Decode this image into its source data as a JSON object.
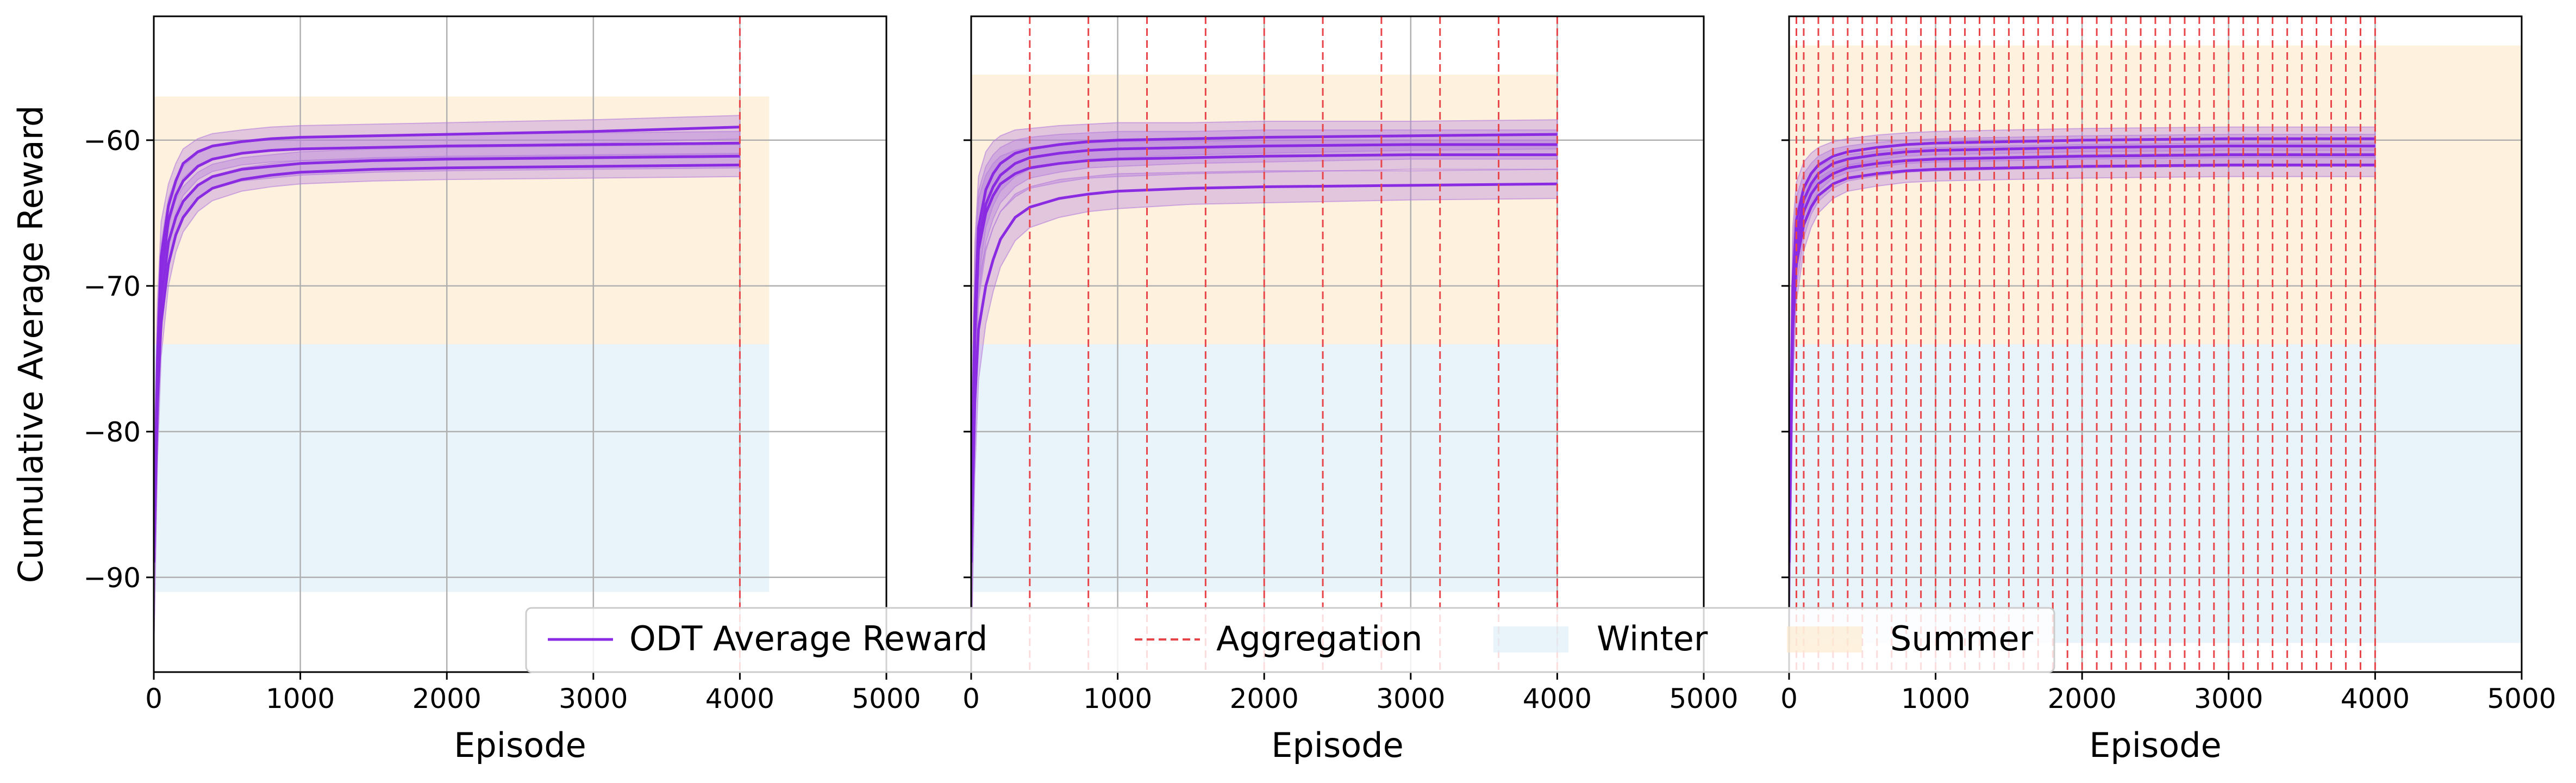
{
  "colors": {
    "odt": "#8a2be2",
    "band": "#b57edc",
    "aggregation": "#e8454a",
    "winter": "#d9ecf5",
    "summer": "#fde9c8",
    "grid": "#b0b0b0"
  },
  "legend": {
    "odt_label": "ODT Average Reward",
    "aggregation_label": "Aggregation",
    "winter_label": "Winter",
    "summer_label": "Summer"
  },
  "chart_data": [
    {
      "type": "line",
      "xlabel": "Episode",
      "ylabel": "Cumulative Average Reward",
      "xlim": [
        0,
        5000
      ],
      "ylim": [
        -96.5,
        -51.5
      ],
      "xticks": [
        0,
        1000,
        2000,
        3000,
        4000,
        5000
      ],
      "yticks": [
        -60,
        -70,
        -80,
        -90
      ],
      "grid": true,
      "winter_region": {
        "x": [
          0,
          4200
        ],
        "y": [
          -91,
          -74
        ]
      },
      "summer_region": {
        "x": [
          0,
          4200
        ],
        "y": [
          -74,
          -57
        ]
      },
      "aggregation_x": [
        4000
      ],
      "series": [
        {
          "x": [
            0,
            25,
            50,
            100,
            150,
            200,
            300,
            400,
            600,
            800,
            1000,
            1500,
            2000,
            3000,
            4000
          ],
          "values": [
            -89,
            -75,
            -68,
            -64.5,
            -62.8,
            -61.6,
            -60.8,
            -60.4,
            -60.1,
            -59.9,
            -59.8,
            -59.7,
            -59.6,
            -59.4,
            -59.1
          ]
        },
        {
          "x": [
            0,
            25,
            50,
            100,
            150,
            200,
            300,
            400,
            600,
            800,
            1000,
            1500,
            2000,
            3000,
            4000
          ],
          "values": [
            -89,
            -76,
            -69.5,
            -65.5,
            -63.8,
            -62.8,
            -61.8,
            -61.3,
            -60.9,
            -60.7,
            -60.6,
            -60.5,
            -60.4,
            -60.3,
            -60.2
          ]
        },
        {
          "x": [
            0,
            25,
            50,
            100,
            150,
            200,
            300,
            400,
            600,
            800,
            1000,
            1500,
            2000,
            3000,
            4000
          ],
          "values": [
            -89,
            -77,
            -71,
            -67,
            -65.3,
            -64.2,
            -63.1,
            -62.5,
            -62.0,
            -61.8,
            -61.6,
            -61.4,
            -61.3,
            -61.2,
            -61.1
          ]
        },
        {
          "x": [
            0,
            25,
            50,
            100,
            150,
            200,
            300,
            400,
            600,
            800,
            1000,
            1500,
            2000,
            3000,
            4000
          ],
          "values": [
            -89,
            -78,
            -72.5,
            -68.5,
            -66.5,
            -65.3,
            -64.0,
            -63.3,
            -62.7,
            -62.4,
            -62.2,
            -62.0,
            -61.9,
            -61.8,
            -61.7
          ]
        }
      ],
      "band_halfwidth": [
        6,
        4,
        2.4,
        1.5,
        1.2,
        1.0,
        0.9,
        0.85,
        0.8,
        0.8,
        0.8,
        0.8,
        0.8,
        0.8,
        0.8
      ]
    },
    {
      "type": "line",
      "xlabel": "Episode",
      "ylabel": "",
      "xlim": [
        0,
        5000
      ],
      "ylim": [
        -96.5,
        -51.5
      ],
      "xticks": [
        0,
        1000,
        2000,
        3000,
        4000,
        5000
      ],
      "yticks": [
        -60,
        -70,
        -80,
        -90
      ],
      "grid": true,
      "winter_region": {
        "x": [
          0,
          4000
        ],
        "y": [
          -91,
          -74
        ]
      },
      "summer_region": {
        "x": [
          0,
          4000
        ],
        "y": [
          -74,
          -55.5
        ]
      },
      "aggregation_x": [
        400,
        800,
        1200,
        1600,
        2000,
        2400,
        2800,
        3200,
        3600,
        4000
      ],
      "series": [
        {
          "x": [
            0,
            25,
            50,
            100,
            150,
            200,
            300,
            400,
            600,
            800,
            1000,
            1500,
            2000,
            3000,
            4000
          ],
          "values": [
            -89,
            -72,
            -66,
            -63.4,
            -62.3,
            -61.6,
            -60.9,
            -60.6,
            -60.3,
            -60.1,
            -60.0,
            -59.9,
            -59.8,
            -59.7,
            -59.6
          ]
        },
        {
          "x": [
            0,
            25,
            50,
            100,
            150,
            200,
            300,
            400,
            600,
            800,
            1000,
            1500,
            2000,
            3000,
            4000
          ],
          "values": [
            -89,
            -73,
            -67,
            -64.4,
            -63.2,
            -62.4,
            -61.6,
            -61.2,
            -60.9,
            -60.7,
            -60.6,
            -60.5,
            -60.4,
            -60.3,
            -60.3
          ]
        },
        {
          "x": [
            0,
            25,
            50,
            100,
            150,
            200,
            300,
            400,
            600,
            800,
            1000,
            1500,
            2000,
            3000,
            4000
          ],
          "values": [
            -89,
            -73.5,
            -67.5,
            -65,
            -63.8,
            -63.0,
            -62.3,
            -61.9,
            -61.6,
            -61.4,
            -61.3,
            -61.2,
            -61.1,
            -61.0,
            -61.0
          ]
        },
        {
          "x": [
            0,
            25,
            50,
            100,
            150,
            200,
            300,
            400,
            600,
            800,
            1000,
            1500,
            2000,
            3000,
            4000
          ],
          "values": [
            -89,
            -78,
            -73,
            -70,
            -68.2,
            -66.8,
            -65.3,
            -64.6,
            -64.0,
            -63.7,
            -63.5,
            -63.3,
            -63.2,
            -63.1,
            -63.0
          ]
        }
      ],
      "band_halfwidth": [
        7,
        5,
        3.5,
        2.6,
        2.2,
        1.9,
        1.6,
        1.4,
        1.3,
        1.2,
        1.2,
        1.1,
        1.1,
        1.0,
        1.0
      ]
    },
    {
      "type": "line",
      "xlabel": "Episode",
      "ylabel": "",
      "xlim": [
        0,
        5000
      ],
      "ylim": [
        -96.5,
        -51.5
      ],
      "xticks": [
        0,
        1000,
        2000,
        3000,
        4000,
        5000
      ],
      "yticks": [
        -60,
        -70,
        -80,
        -90
      ],
      "grid": true,
      "winter_region": {
        "x": [
          0,
          5000
        ],
        "y": [
          -94.5,
          -74
        ]
      },
      "summer_region": {
        "x": [
          0,
          5000
        ],
        "y": [
          -74,
          -53.5
        ]
      },
      "aggregation_x": [
        50,
        100,
        200,
        300,
        400,
        500,
        600,
        700,
        800,
        900,
        1000,
        1100,
        1200,
        1300,
        1400,
        1500,
        1600,
        1700,
        1800,
        1900,
        2000,
        2100,
        2200,
        2300,
        2400,
        2500,
        2600,
        2700,
        2800,
        2900,
        3000,
        3100,
        3200,
        3300,
        3400,
        3500,
        3600,
        3700,
        3800,
        3900,
        4000
      ],
      "series": [
        {
          "x": [
            0,
            25,
            50,
            100,
            150,
            200,
            300,
            400,
            600,
            800,
            1000,
            1500,
            2000,
            3000,
            4000
          ],
          "values": [
            -89,
            -70,
            -65.5,
            -63.3,
            -62.3,
            -61.7,
            -61.1,
            -60.8,
            -60.5,
            -60.3,
            -60.2,
            -60.1,
            -60.0,
            -59.9,
            -59.9
          ]
        },
        {
          "x": [
            0,
            25,
            50,
            100,
            150,
            200,
            300,
            400,
            600,
            800,
            1000,
            1500,
            2000,
            3000,
            4000
          ],
          "values": [
            -89,
            -71,
            -66.5,
            -64.1,
            -63.0,
            -62.3,
            -61.6,
            -61.3,
            -61.0,
            -60.8,
            -60.7,
            -60.6,
            -60.5,
            -60.4,
            -60.4
          ]
        },
        {
          "x": [
            0,
            25,
            50,
            100,
            150,
            200,
            300,
            400,
            600,
            800,
            1000,
            1500,
            2000,
            3000,
            4000
          ],
          "values": [
            -89,
            -72,
            -67.5,
            -64.9,
            -63.7,
            -63.0,
            -62.3,
            -61.9,
            -61.6,
            -61.4,
            -61.3,
            -61.2,
            -61.1,
            -61.0,
            -61.0
          ]
        },
        {
          "x": [
            0,
            25,
            50,
            100,
            150,
            200,
            300,
            400,
            600,
            800,
            1000,
            1500,
            2000,
            3000,
            4000
          ],
          "values": [
            -89,
            -73,
            -68.5,
            -65.8,
            -64.6,
            -63.8,
            -63.0,
            -62.6,
            -62.3,
            -62.1,
            -62.0,
            -61.9,
            -61.8,
            -61.7,
            -61.7
          ]
        }
      ],
      "band_halfwidth": [
        6,
        4,
        2.6,
        1.8,
        1.4,
        1.2,
        1.0,
        0.9,
        0.85,
        0.8,
        0.8,
        0.8,
        0.8,
        0.8,
        0.8
      ]
    }
  ]
}
